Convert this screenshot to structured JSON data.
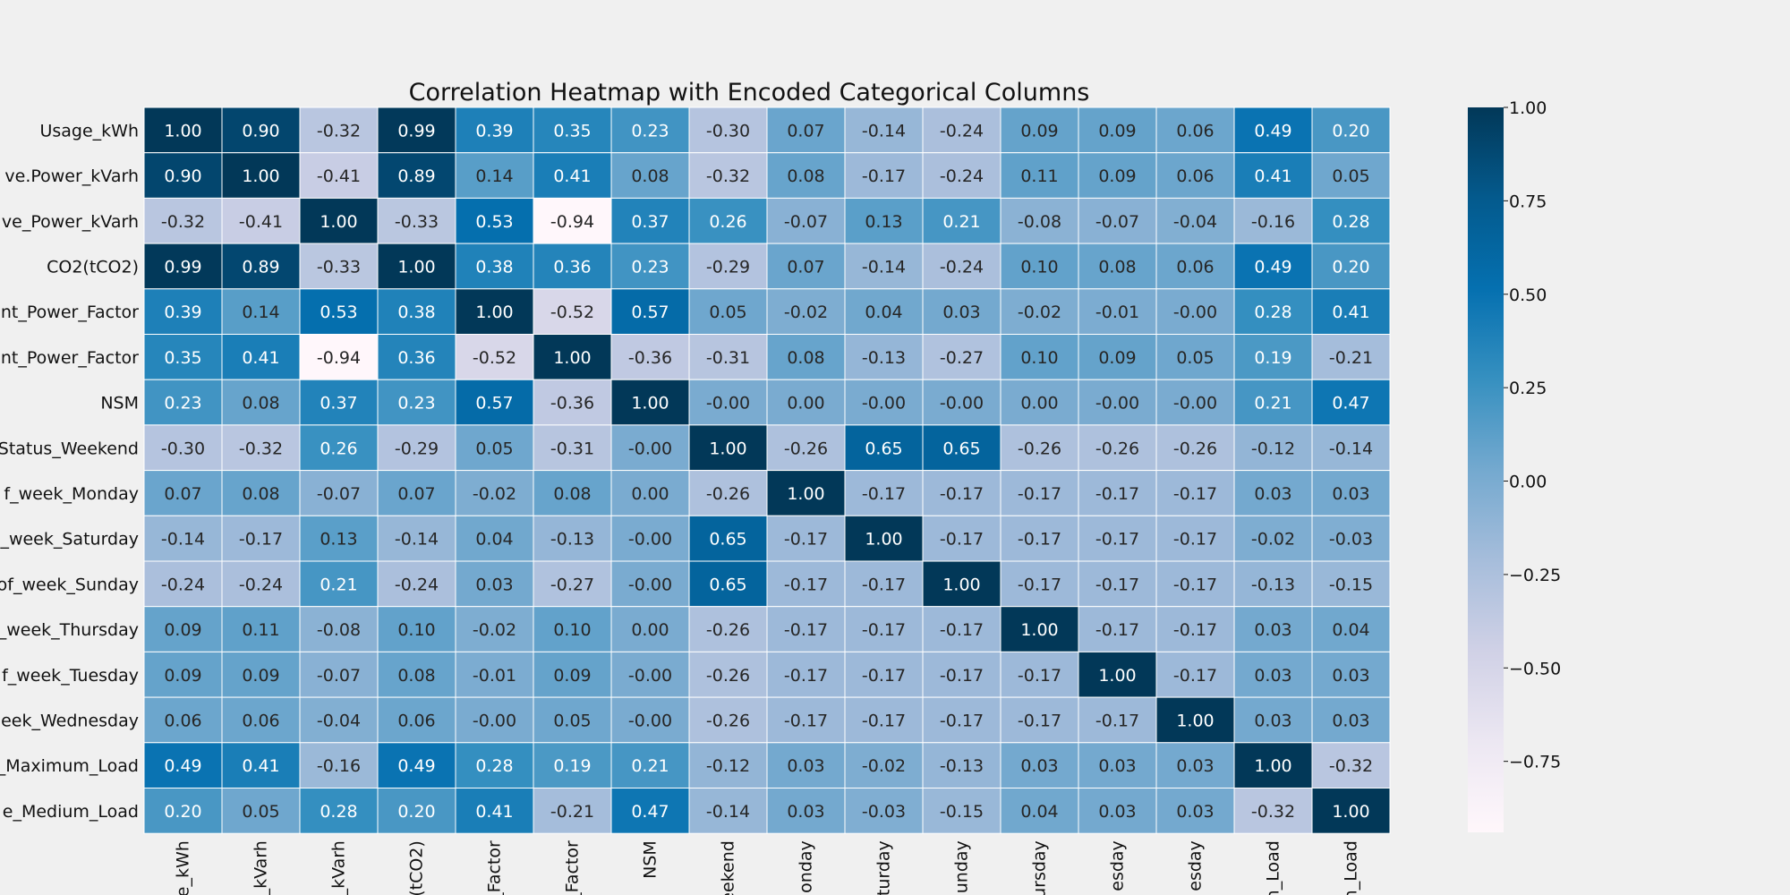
{
  "chart_data": {
    "type": "heatmap",
    "title": "Correlation Heatmap with Encoded Categorical Columns",
    "row_labels": [
      "Usage_kWh",
      "ve.Power_kVarh",
      "ve_Power_kVarh",
      "CO2(tCO2)",
      "nt_Power_Factor",
      "nt_Power_Factor",
      "NSM",
      "Status_Weekend",
      "f_week_Monday",
      "_week_Saturday",
      "of_week_Sunday",
      "_week_Thursday",
      "f_week_Tuesday",
      "eek_Wednesday",
      "_Maximum_Load",
      "e_Medium_Load"
    ],
    "col_labels": [
      "e_kWh",
      "_kVarh",
      "_kVarh",
      "(tCO2)",
      "_Factor",
      "_Factor",
      "NSM",
      "eekend",
      "onday",
      "turday",
      "unday",
      "ursday",
      "esday",
      "esday",
      "n_Load",
      "n_Load"
    ],
    "values": [
      [
        "1.00",
        "0.90",
        "-0.32",
        "0.99",
        "0.39",
        "0.35",
        "0.23",
        "-0.30",
        "0.07",
        "-0.14",
        "-0.24",
        "0.09",
        "0.09",
        "0.06",
        "0.49",
        "0.20"
      ],
      [
        "0.90",
        "1.00",
        "-0.41",
        "0.89",
        "0.14",
        "0.41",
        "0.08",
        "-0.32",
        "0.08",
        "-0.17",
        "-0.24",
        "0.11",
        "0.09",
        "0.06",
        "0.41",
        "0.05"
      ],
      [
        "-0.32",
        "-0.41",
        "1.00",
        "-0.33",
        "0.53",
        "-0.94",
        "0.37",
        "0.26",
        "-0.07",
        "0.13",
        "0.21",
        "-0.08",
        "-0.07",
        "-0.04",
        "-0.16",
        "0.28"
      ],
      [
        "0.99",
        "0.89",
        "-0.33",
        "1.00",
        "0.38",
        "0.36",
        "0.23",
        "-0.29",
        "0.07",
        "-0.14",
        "-0.24",
        "0.10",
        "0.08",
        "0.06",
        "0.49",
        "0.20"
      ],
      [
        "0.39",
        "0.14",
        "0.53",
        "0.38",
        "1.00",
        "-0.52",
        "0.57",
        "0.05",
        "-0.02",
        "0.04",
        "0.03",
        "-0.02",
        "-0.01",
        "-0.00",
        "0.28",
        "0.41"
      ],
      [
        "0.35",
        "0.41",
        "-0.94",
        "0.36",
        "-0.52",
        "1.00",
        "-0.36",
        "-0.31",
        "0.08",
        "-0.13",
        "-0.27",
        "0.10",
        "0.09",
        "0.05",
        "0.19",
        "-0.21"
      ],
      [
        "0.23",
        "0.08",
        "0.37",
        "0.23",
        "0.57",
        "-0.36",
        "1.00",
        "-0.00",
        "0.00",
        "-0.00",
        "-0.00",
        "0.00",
        "-0.00",
        "-0.00",
        "0.21",
        "0.47"
      ],
      [
        "-0.30",
        "-0.32",
        "0.26",
        "-0.29",
        "0.05",
        "-0.31",
        "-0.00",
        "1.00",
        "-0.26",
        "0.65",
        "0.65",
        "-0.26",
        "-0.26",
        "-0.26",
        "-0.12",
        "-0.14"
      ],
      [
        "0.07",
        "0.08",
        "-0.07",
        "0.07",
        "-0.02",
        "0.08",
        "0.00",
        "-0.26",
        "1.00",
        "-0.17",
        "-0.17",
        "-0.17",
        "-0.17",
        "-0.17",
        "0.03",
        "0.03"
      ],
      [
        "-0.14",
        "-0.17",
        "0.13",
        "-0.14",
        "0.04",
        "-0.13",
        "-0.00",
        "0.65",
        "-0.17",
        "1.00",
        "-0.17",
        "-0.17",
        "-0.17",
        "-0.17",
        "-0.02",
        "-0.03"
      ],
      [
        "-0.24",
        "-0.24",
        "0.21",
        "-0.24",
        "0.03",
        "-0.27",
        "-0.00",
        "0.65",
        "-0.17",
        "-0.17",
        "1.00",
        "-0.17",
        "-0.17",
        "-0.17",
        "-0.13",
        "-0.15"
      ],
      [
        "0.09",
        "0.11",
        "-0.08",
        "0.10",
        "-0.02",
        "0.10",
        "0.00",
        "-0.26",
        "-0.17",
        "-0.17",
        "-0.17",
        "1.00",
        "-0.17",
        "-0.17",
        "0.03",
        "0.04"
      ],
      [
        "0.09",
        "0.09",
        "-0.07",
        "0.08",
        "-0.01",
        "0.09",
        "-0.00",
        "-0.26",
        "-0.17",
        "-0.17",
        "-0.17",
        "-0.17",
        "1.00",
        "-0.17",
        "0.03",
        "0.03"
      ],
      [
        "0.06",
        "0.06",
        "-0.04",
        "0.06",
        "-0.00",
        "0.05",
        "-0.00",
        "-0.26",
        "-0.17",
        "-0.17",
        "-0.17",
        "-0.17",
        "-0.17",
        "1.00",
        "0.03",
        "0.03"
      ],
      [
        "0.49",
        "0.41",
        "-0.16",
        "0.49",
        "0.28",
        "0.19",
        "0.21",
        "-0.12",
        "0.03",
        "-0.02",
        "-0.13",
        "0.03",
        "0.03",
        "0.03",
        "1.00",
        "-0.32"
      ],
      [
        "0.20",
        "0.05",
        "0.28",
        "0.20",
        "0.41",
        "-0.21",
        "0.47",
        "-0.14",
        "0.03",
        "-0.03",
        "-0.15",
        "0.04",
        "0.03",
        "0.03",
        "-0.32",
        "1.00"
      ]
    ],
    "colorbar": {
      "vmin": -0.94,
      "vmax": 1.0,
      "ticks": [
        "1.00",
        "0.75",
        "0.50",
        "0.25",
        "0.00",
        "−0.25",
        "−0.50",
        "−0.75"
      ],
      "tick_values": [
        1.0,
        0.75,
        0.5,
        0.25,
        0.0,
        -0.25,
        -0.5,
        -0.75
      ]
    },
    "colormap": [
      "#fff7fb",
      "#ece7f2",
      "#d0d1e6",
      "#a6bddb",
      "#74a9cf",
      "#3690c0",
      "#0570b0",
      "#045a8d",
      "#023858"
    ]
  }
}
